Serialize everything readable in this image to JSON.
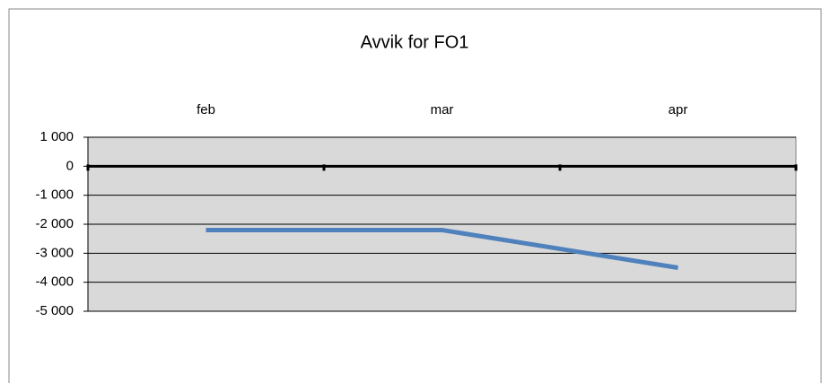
{
  "chart_data": {
    "type": "line",
    "title": "Avvik for FO1",
    "categories": [
      "feb",
      "mar",
      "apr"
    ],
    "values": [
      -2200,
      -2200,
      -3500
    ],
    "color": "#4f81bd",
    "ylim": [
      -5000,
      1000
    ],
    "yticks": [
      {
        "value": 1000,
        "label": "1 000"
      },
      0,
      {
        "value": -1000,
        "label": "-1 000"
      },
      {
        "value": -2000,
        "label": "-2 000"
      },
      {
        "value": -3000,
        "label": "-3 000"
      },
      {
        "value": -4000,
        "label": "-4 000"
      },
      {
        "value": -5000,
        "label": "-5 000"
      }
    ],
    "grid": true
  }
}
